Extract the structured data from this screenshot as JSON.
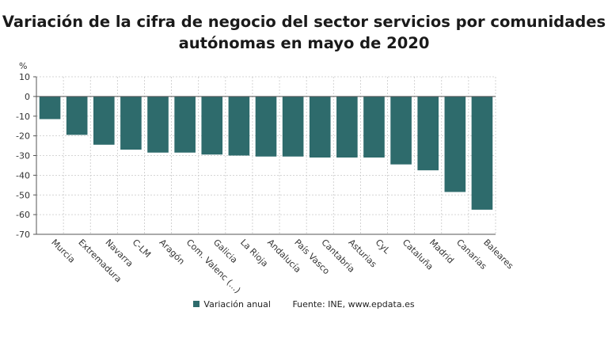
{
  "chart_data": {
    "type": "bar",
    "title_line1": "Variación de la cifra de negocio del sector servicios por comunidades",
    "title_line2": "autónomas en mayo de 2020",
    "ylabel": "%",
    "ylim": [
      -70,
      10
    ],
    "yticks": [
      10,
      0,
      -10,
      -20,
      -30,
      -40,
      -50,
      -60,
      -70
    ],
    "grid": true,
    "categories": [
      "Murcia",
      "Extremadura",
      "Navarra",
      "C-LM",
      "Aragón",
      "Com. Valenc (...)",
      "Galicia",
      "La Rioja",
      "Andalucía",
      "País Vasco",
      "Cantabria",
      "Asturias",
      "CyL",
      "Cataluña",
      "Madrid",
      "Canarias",
      "Baleares"
    ],
    "series": [
      {
        "name": "Variación anual",
        "color": "#2e6b6c",
        "values": [
          -11.5,
          -19.5,
          -24.5,
          -27,
          -28.5,
          -28.5,
          -29.5,
          -30,
          -30.5,
          -30.5,
          -31,
          -31,
          -31,
          -34.5,
          -37.5,
          -48.5,
          -57.5
        ]
      }
    ],
    "legend_position": "bottom",
    "source": "Fuente: INE, www.epdata.es"
  }
}
